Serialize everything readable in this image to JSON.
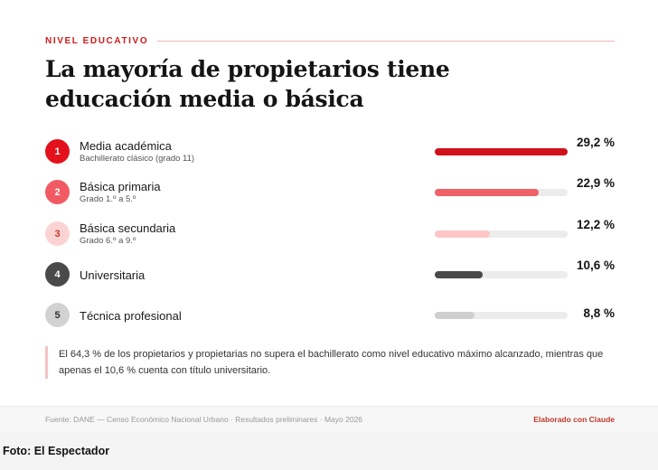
{
  "kicker": "NIVEL EDUCATIVO",
  "title": "La mayoría de propietarios tiene educación media o básica",
  "chart_data": {
    "type": "bar",
    "title": "La mayoría de propietarios tiene educación media o básica",
    "xlabel": "",
    "ylabel": "",
    "unit": "%",
    "xlim": [
      0,
      29.2
    ],
    "categories": [
      "Media académica",
      "Básica primaria",
      "Básica secundaria",
      "Universitaria",
      "Técnica profesional"
    ],
    "subcategories": [
      "Bachillerato clásico (grado 11)",
      "Grado 1.º a 5.º",
      "Grado 6.º a 9.º",
      "",
      ""
    ],
    "values": [
      29.2,
      22.9,
      12.2,
      10.6,
      8.8
    ],
    "value_labels": [
      "29,2 %",
      "22,9 %",
      "12,2 %",
      "10,6 %",
      "8,8 %"
    ],
    "ranks": [
      "1",
      "2",
      "3",
      "4",
      "5"
    ],
    "bar_colors": [
      "#d0121d",
      "#f06068",
      "#fcc6c6",
      "#4a4a4a",
      "#cfcfcf"
    ],
    "badge_colors": [
      "#e3111b",
      "#f15a62",
      "#fcd3d3",
      "#4a4a4a",
      "#d2d2d2"
    ],
    "badge_text_colors": [
      "#ffffff",
      "#ffffff",
      "#c0392b",
      "#ffffff",
      "#333333"
    ]
  },
  "note": "El 64,3 % de los propietarios y propietarias no supera el bachillerato como nivel educativo máximo alcanzado, mientras que apenas el 10,6 % cuenta con título universitario.",
  "footer": {
    "source": "Fuente: DANE — Censo Económico Nacional Urbano · Resultados preliminares · Mayo 2026",
    "credit": "Elaborado con Claude"
  },
  "photo_credit": "Foto: El Espectador"
}
